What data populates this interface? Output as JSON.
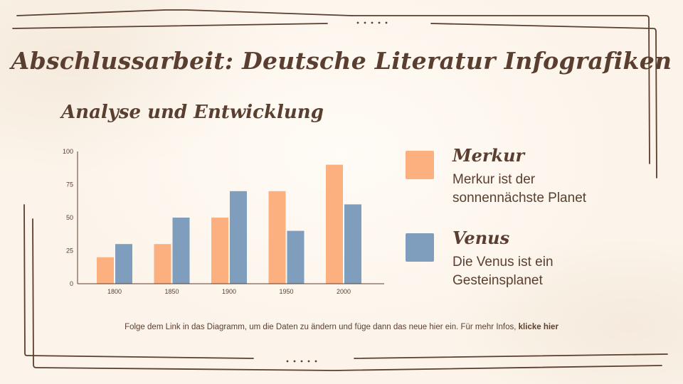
{
  "title": "Abschlussarbeit: Deutsche Literatur Infografiken",
  "subtitle": "Analyse und Entwicklung",
  "legend": [
    {
      "name": "Merkur",
      "description": "Merkur ist der sonnennächste Planet",
      "color": "#fdb07f"
    },
    {
      "name": "Venus",
      "description": "Die Venus ist ein Gesteinsplanet",
      "color": "#7f9dbd"
    }
  ],
  "footer": {
    "text": "Folge dem Link in das Diagramm, um die Daten zu ändern und füge dann das neue hier ein. Für mehr Infos, ",
    "link": "klicke hier"
  },
  "colors": {
    "background": "#fcf4ea",
    "text": "#5a3e2f",
    "frame": "#5a3e2f",
    "merkur": "#fdb07f",
    "venus": "#7f9dbd"
  },
  "chart_data": {
    "type": "bar",
    "title": "",
    "xlabel": "",
    "ylabel": "",
    "categories": [
      "1800",
      "1850",
      "1900",
      "1950",
      "2000"
    ],
    "series": [
      {
        "name": "Merkur",
        "values": [
          20,
          30,
          50,
          70,
          90
        ],
        "color": "#fdb07f"
      },
      {
        "name": "Venus",
        "values": [
          30,
          50,
          70,
          40,
          60
        ],
        "color": "#7f9dbd"
      }
    ],
    "yticks": [
      0,
      25,
      50,
      75,
      100
    ],
    "ylim": [
      0,
      100
    ],
    "grid": false,
    "legend_position": "right"
  }
}
